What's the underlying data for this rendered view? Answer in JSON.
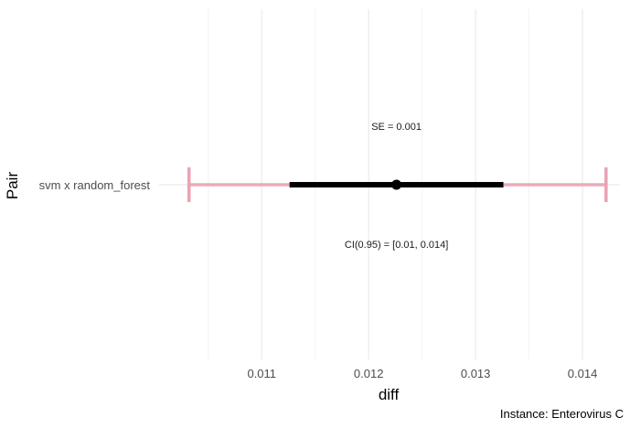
{
  "chart_data": {
    "type": "errorbar",
    "xlabel": "diff",
    "ylabel": "Pair",
    "categories": [
      "svm x random_forest"
    ],
    "xlim": [
      0.01004,
      0.01435
    ],
    "x_ticks": [
      {
        "value": 0.011,
        "label": "0.011"
      },
      {
        "value": 0.012,
        "label": "0.012"
      },
      {
        "value": 0.013,
        "label": "0.013"
      },
      {
        "value": 0.014,
        "label": "0.014"
      }
    ],
    "minor_grid": [
      0.0105,
      0.0115,
      0.0125,
      0.0135
    ],
    "grid": true,
    "points": [
      {
        "category": "svm x random_forest",
        "estimate": 0.01226,
        "se_range": [
          0.01126,
          0.01326
        ],
        "ci_range": [
          0.01032,
          0.01422
        ],
        "se_label": "SE = 0.001",
        "ci_label": "CI(0.95) = [0.01, 0.014]"
      }
    ],
    "colors": {
      "ci_bar": "#eba2b2",
      "se_bar": "#000000",
      "point": "#000000",
      "grid": "#ebebeb"
    }
  },
  "caption": "Instance: Enterovirus C"
}
